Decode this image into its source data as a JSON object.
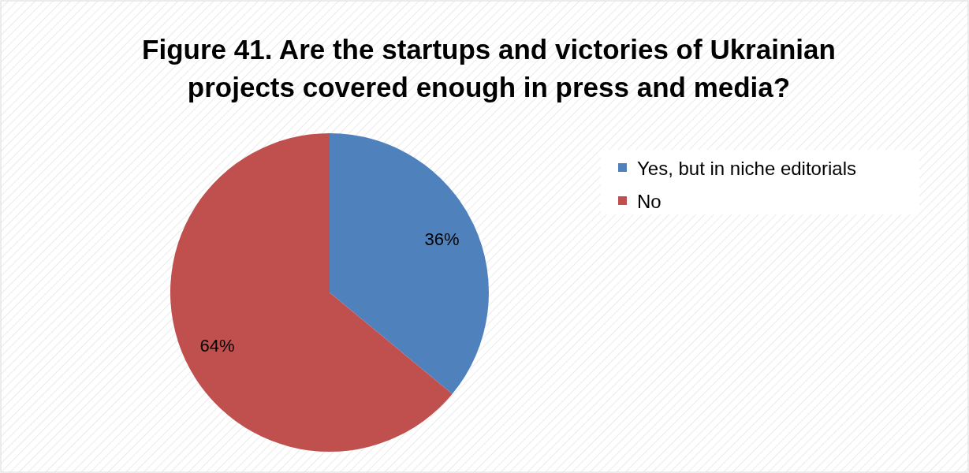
{
  "chart_data": {
    "type": "pie",
    "title": "Figure 41. Are the startups and victories of Ukrainian projects covered enough in press and media?",
    "categories": [
      "Yes, but in niche editorials",
      "No"
    ],
    "values": [
      36,
      64
    ],
    "colors": [
      "#4f81bd",
      "#c0504d"
    ],
    "value_labels": [
      "36%",
      "64%"
    ],
    "legend": "right"
  }
}
